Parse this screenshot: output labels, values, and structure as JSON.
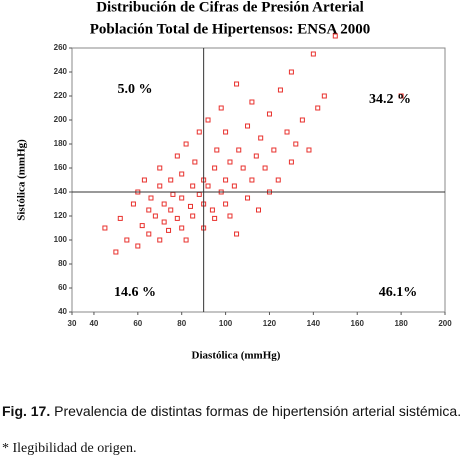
{
  "chart_data": {
    "type": "scatter",
    "title": "Distribución de Cifras de Presión Arterial",
    "subtitle": "Población Total de Hipertensos: ENSA 2000",
    "x_label": "Diastólica (mmHg)",
    "y_label": "Sistólica (mmHg)",
    "color": "#e8302c",
    "xlim": [
      30,
      200
    ],
    "xticks": [
      30,
      40,
      60,
      80,
      100,
      120,
      140,
      160,
      180,
      200
    ],
    "ylim": [
      40,
      260
    ],
    "yticks": [
      40,
      60,
      80,
      100,
      120,
      140,
      160,
      180,
      200,
      220,
      240,
      260
    ],
    "reference_x": 90,
    "reference_y": 140,
    "annotations": [
      "5.0 %",
      "34.2 %",
      "14.6 %",
      "46.1%"
    ],
    "x": [
      45,
      50,
      52,
      55,
      58,
      60,
      60,
      62,
      63,
      65,
      65,
      66,
      68,
      70,
      70,
      70,
      72,
      72,
      74,
      75,
      75,
      76,
      78,
      78,
      80,
      80,
      80,
      82,
      82,
      84,
      85,
      85,
      86,
      88,
      88,
      90,
      90,
      90,
      92,
      92,
      94,
      95,
      95,
      96,
      98,
      98,
      100,
      100,
      100,
      102,
      102,
      104,
      105,
      105,
      106,
      108,
      110,
      110,
      112,
      112,
      114,
      115,
      116,
      118,
      120,
      120,
      122,
      124,
      125,
      128,
      130,
      130,
      132,
      135,
      138,
      140,
      142,
      145,
      150,
      180
    ],
    "y": [
      110,
      90,
      118,
      100,
      130,
      95,
      140,
      112,
      150,
      105,
      125,
      135,
      120,
      100,
      145,
      160,
      115,
      130,
      108,
      150,
      125,
      138,
      170,
      118,
      110,
      135,
      155,
      100,
      180,
      128,
      145,
      120,
      165,
      138,
      190,
      110,
      130,
      150,
      145,
      200,
      125,
      160,
      118,
      175,
      140,
      210,
      130,
      150,
      190,
      120,
      165,
      145,
      230,
      105,
      175,
      160,
      135,
      195,
      150,
      215,
      170,
      125,
      185,
      160,
      140,
      205,
      175,
      150,
      225,
      190,
      165,
      240,
      180,
      200,
      175,
      255,
      210,
      220,
      270,
      220
    ]
  },
  "caption": {
    "label": "Fig. 17.",
    "text": " Prevalencia de distintas formas de hipertensión arterial sistémica.",
    "note": "* Ilegibilidad de origen."
  }
}
